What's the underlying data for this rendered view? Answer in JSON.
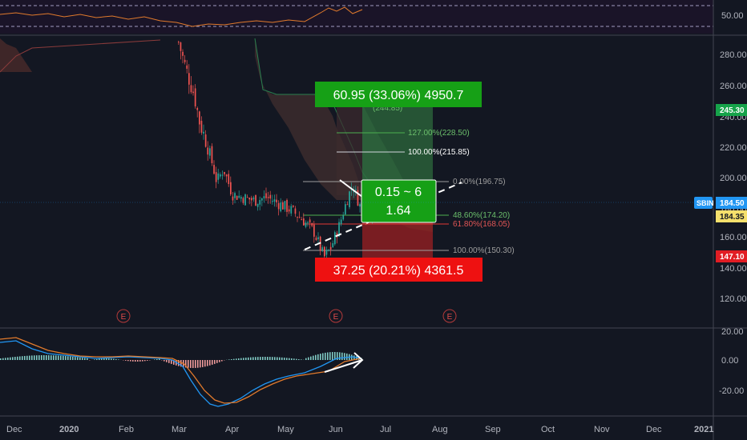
{
  "rsi": {
    "level": "50.00"
  },
  "price_axis": {
    "ticks": [
      "280.00",
      "260.00",
      "240.00",
      "220.00",
      "200.00",
      "180.00",
      "160.00",
      "140.00",
      "120.00"
    ]
  },
  "macd_axis": {
    "ticks": [
      "20.00",
      "0.00",
      "-20.00"
    ]
  },
  "time_axis": [
    "Dec",
    "2020",
    "Feb",
    "Mar",
    "Apr",
    "May",
    "Jun",
    "Jul",
    "Aug",
    "Sep",
    "Oct",
    "Nov",
    "Dec",
    "2021"
  ],
  "price_tags": {
    "target": {
      "text": "245.30",
      "color": "#16a34a"
    },
    "symbol": {
      "text": "SBIN",
      "color": "#2196f3"
    },
    "last": {
      "text": "184.50",
      "color": "#2196f3"
    },
    "ref": {
      "text": "184.35",
      "color": "#f5e06c"
    },
    "stop": {
      "text": "147.10",
      "color": "#e11d24"
    }
  },
  "boxes": {
    "profit": {
      "text": "60.95 (33.06%) 4950.7",
      "color": "#16a016"
    },
    "loss": {
      "text": "37.25 (20.21%) 4361.5",
      "color": "#ee1111"
    },
    "ratio": {
      "line1": "0.15 ~ 6",
      "line2": "1.64",
      "color": "#16a016"
    }
  },
  "fib_labels": {
    "top": "(244.85)",
    "l127": "127.00%(228.50)",
    "l100u": "100.00%(215.85)",
    "l0": "0.00%(196.75)",
    "l486": "48.60%(174.20)",
    "l618": "61.80%(168.05)",
    "l100": "100.00%(150.30)"
  },
  "events": [
    "E",
    "E",
    "E"
  ],
  "chart_data": {
    "type": "candlestick",
    "symbol": "SBIN",
    "ylim": [
      110,
      292
    ],
    "price_ticks": [
      280,
      260,
      240,
      220,
      200,
      180,
      160,
      140,
      120
    ],
    "macd_ticks": [
      20,
      0,
      -20
    ],
    "last_price": 184.5,
    "ref_price": 184.35,
    "target_price": 245.3,
    "stop_price": 147.1,
    "fibonacci_retracement": [
      {
        "level": "0.00%",
        "price": 196.75
      },
      {
        "level": "48.60%",
        "price": 174.2
      },
      {
        "level": "61.80%",
        "price": 168.05
      },
      {
        "level": "100.00%",
        "price": 150.3
      }
    ],
    "fibonacci_extension": [
      {
        "level": "100.00%",
        "price": 215.85
      },
      {
        "level": "127.00%",
        "price": 228.5
      },
      {
        "level": "",
        "price": 244.85
      }
    ],
    "risk_reward": {
      "profit": "60.95 (33.06%) 4950.7",
      "loss": "37.25 (20.21%) 4361.5",
      "ratio_line1": "0.15 ~ 6",
      "ratio_line2": "1.64"
    },
    "close_path": [
      [
        "2020-03-01",
        288
      ],
      [
        "2020-03-05",
        272
      ],
      [
        "2020-03-10",
        255
      ],
      [
        "2020-03-13",
        238
      ],
      [
        "2020-03-18",
        222
      ],
      [
        "2020-03-23",
        200
      ],
      [
        "2020-03-27",
        208
      ],
      [
        "2020-04-01",
        192
      ],
      [
        "2020-04-07",
        190
      ],
      [
        "2020-04-14",
        188
      ],
      [
        "2020-04-21",
        190
      ],
      [
        "2020-04-28",
        186
      ],
      [
        "2020-05-05",
        182
      ],
      [
        "2020-05-12",
        176
      ],
      [
        "2020-05-19",
        168
      ],
      [
        "2020-05-25",
        152
      ],
      [
        "2020-05-29",
        158
      ],
      [
        "2020-06-03",
        172
      ],
      [
        "2020-06-08",
        190
      ],
      [
        "2020-06-11",
        198
      ],
      [
        "2020-06-16",
        182
      ],
      [
        "2020-06-19",
        178
      ],
      [
        "2020-06-23",
        180
      ]
    ]
  }
}
